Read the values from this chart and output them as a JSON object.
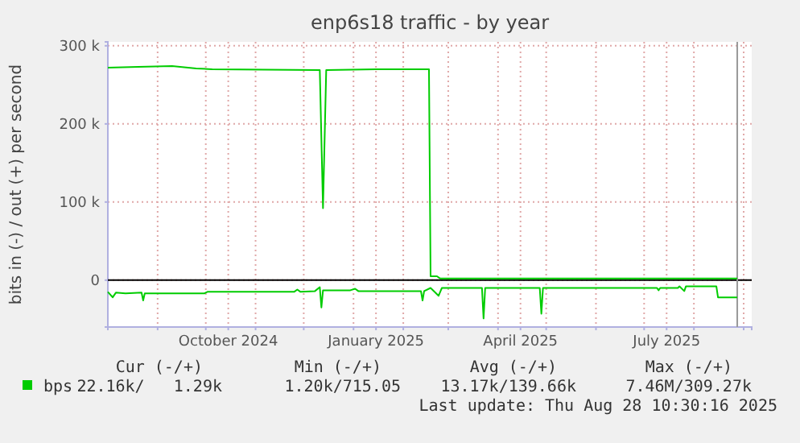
{
  "chart_data": {
    "type": "line",
    "title": "enp6s18 traffic - by year",
    "ylabel": "bits in (-) / out (+) per second",
    "xlim": [
      "2024-08-01",
      "2025-09-06"
    ],
    "ylim": [
      -60000,
      305000
    ],
    "xticks": [
      {
        "value": "2024-09-01",
        "label": null
      },
      {
        "value": "2024-10-01",
        "label": null
      },
      {
        "value": "2024-10-15",
        "label": "October 2024"
      },
      {
        "value": "2024-11-01",
        "label": null
      },
      {
        "value": "2024-12-01",
        "label": null
      },
      {
        "value": "2025-01-01",
        "label": null
      },
      {
        "value": "2025-01-15",
        "label": "January 2025"
      },
      {
        "value": "2025-02-01",
        "label": null
      },
      {
        "value": "2025-03-01",
        "label": null
      },
      {
        "value": "2025-04-01",
        "label": null
      },
      {
        "value": "2025-04-15",
        "label": "April 2025"
      },
      {
        "value": "2025-05-01",
        "label": null
      },
      {
        "value": "2025-06-01",
        "label": null
      },
      {
        "value": "2025-07-01",
        "label": null
      },
      {
        "value": "2025-07-15",
        "label": "July 2025"
      },
      {
        "value": "2025-08-01",
        "label": null
      },
      {
        "value": "2025-09-01",
        "label": null
      }
    ],
    "yticks": [
      {
        "value": 0,
        "label": "0"
      },
      {
        "value": 100000,
        "label": "100 k"
      },
      {
        "value": 200000,
        "label": "200 k"
      },
      {
        "value": 300000,
        "label": "300 k"
      }
    ],
    "grid": true,
    "legend": "bottom",
    "marker": "none",
    "line_style": "solid",
    "series": [
      {
        "name": "bps",
        "color": "#00cc00",
        "x": [
          "2024-08-01",
          "2024-08-20",
          "2024-09-10",
          "2024-09-25",
          "2024-10-05",
          "2024-12-11",
          "2024-12-13",
          "2024-12-15",
          "2025-01-15",
          "2025-02-17",
          "2025-02-18",
          "2025-02-22",
          "2025-02-24",
          "2025-05-01",
          "2025-08-28"
        ],
        "values": [
          272000,
          273000,
          274000,
          271000,
          270000,
          269000,
          92000,
          269000,
          270000,
          270000,
          5000,
          5000,
          2000,
          2000,
          2000
        ]
      },
      {
        "color": "#00cc00",
        "x": [
          "2024-08-01",
          "2024-08-04",
          "2024-08-06",
          "2024-08-12",
          "2024-08-22",
          "2024-08-23",
          "2024-08-24",
          "2024-09-30",
          "2024-10-02",
          "2024-11-25",
          "2024-11-27",
          "2024-11-29",
          "2024-12-08",
          "2024-12-11",
          "2024-12-12",
          "2024-12-13",
          "2024-12-30",
          "2025-01-02",
          "2025-01-04",
          "2025-02-12",
          "2025-02-13",
          "2025-02-14",
          "2025-02-18",
          "2025-02-23",
          "2025-02-25",
          "2025-03-22",
          "2025-03-23",
          "2025-03-24",
          "2025-04-27",
          "2025-04-28",
          "2025-04-29",
          "2025-07-09",
          "2025-07-10",
          "2025-07-11",
          "2025-07-22",
          "2025-07-23",
          "2025-07-26",
          "2025-07-27",
          "2025-08-15",
          "2025-08-16",
          "2025-08-28"
        ],
        "values": [
          -15000,
          -22000,
          -16000,
          -17000,
          -16000,
          -26000,
          -17000,
          -17000,
          -15000,
          -15000,
          -12000,
          -15000,
          -14000,
          -9000,
          -35000,
          -13000,
          -13000,
          -11000,
          -14000,
          -14000,
          -26000,
          -14000,
          -10000,
          -20000,
          -10000,
          -10000,
          -49000,
          -10000,
          -10000,
          -43000,
          -10000,
          -10000,
          -13000,
          -10000,
          -10000,
          -8000,
          -14000,
          -8000,
          -8000,
          -22000,
          -22000
        ]
      }
    ],
    "ref_lines": [
      {
        "axis": "y",
        "value": 0,
        "color": "#000000"
      },
      {
        "axis": "x",
        "value": "2025-08-28",
        "color": "#999999"
      }
    ],
    "annotations": [
      "Cur (-/+)",
      "Min (-/+)",
      "Avg (-/+)",
      "Max (-/+)",
      "22.16k/   1.29k",
      "1.20k/715.05",
      "13.17k/139.66k",
      "7.46M/309.27k",
      "Last update: Thu Aug 28 10:30:16 2025"
    ]
  }
}
